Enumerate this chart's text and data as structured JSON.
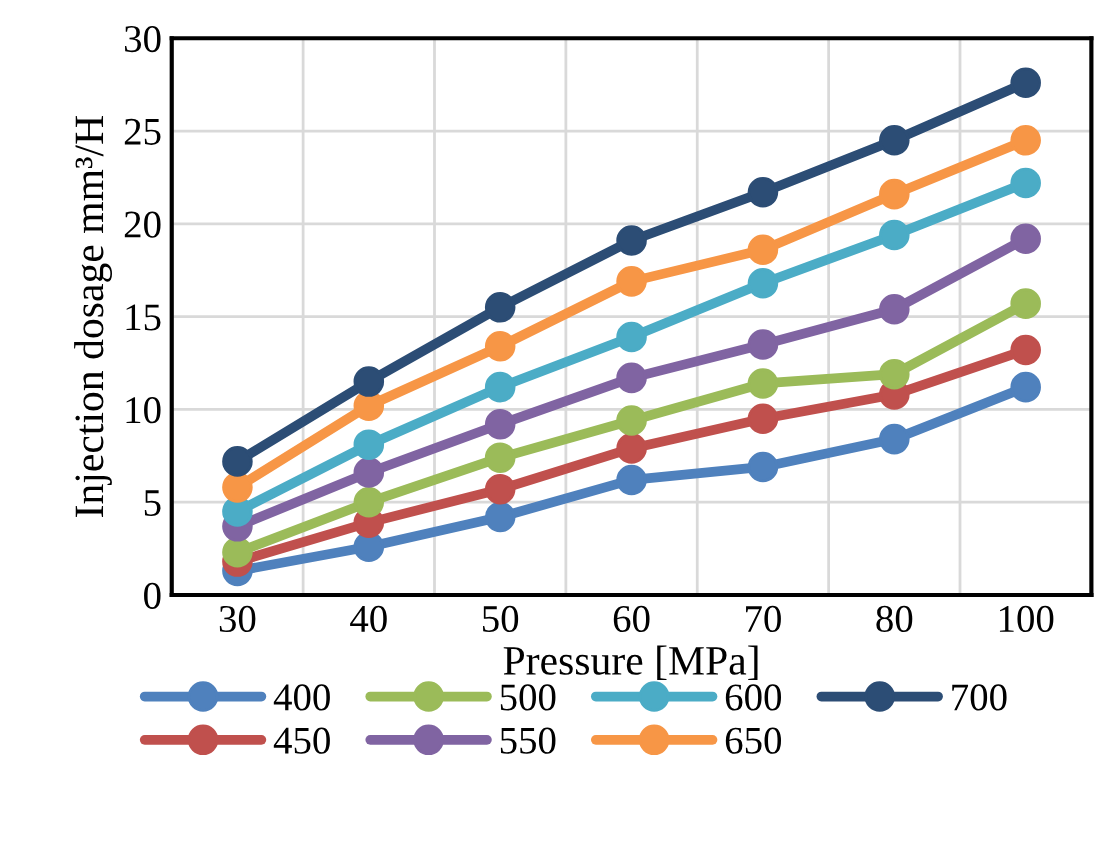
{
  "chart_data": {
    "type": "line",
    "xlabel": "Pressure [MPa]",
    "ylabel": "Injection dosage mm³/H",
    "categories": [
      "30",
      "40",
      "50",
      "60",
      "70",
      "80",
      "100"
    ],
    "ylim": [
      0,
      30
    ],
    "yticks": [
      0,
      5,
      10,
      15,
      20,
      25,
      30
    ],
    "grid": true,
    "legend": "bottom",
    "marker": "circle",
    "line_style": "solid",
    "series": [
      {
        "name": "400",
        "color": "#4f81bd",
        "values": [
          1.3,
          2.6,
          4.2,
          6.2,
          6.9,
          8.4,
          11.2
        ]
      },
      {
        "name": "450",
        "color": "#c0504d",
        "values": [
          1.8,
          3.9,
          5.7,
          7.9,
          9.5,
          10.8,
          13.2
        ]
      },
      {
        "name": "500",
        "color": "#9bbb59",
        "values": [
          2.3,
          5.0,
          7.4,
          9.4,
          11.4,
          11.9,
          15.7
        ]
      },
      {
        "name": "550",
        "color": "#8064a2",
        "values": [
          3.7,
          6.6,
          9.2,
          11.7,
          13.5,
          15.4,
          19.2
        ]
      },
      {
        "name": "600",
        "color": "#4bacc6",
        "values": [
          4.5,
          8.1,
          11.2,
          13.9,
          16.8,
          19.4,
          22.2
        ]
      },
      {
        "name": "650",
        "color": "#f79646",
        "values": [
          5.8,
          10.2,
          13.4,
          16.9,
          18.6,
          21.6,
          24.5
        ]
      },
      {
        "name": "700",
        "color": "#2c4d75",
        "values": [
          7.2,
          11.5,
          15.5,
          19.1,
          21.7,
          24.5,
          27.6
        ]
      }
    ]
  }
}
